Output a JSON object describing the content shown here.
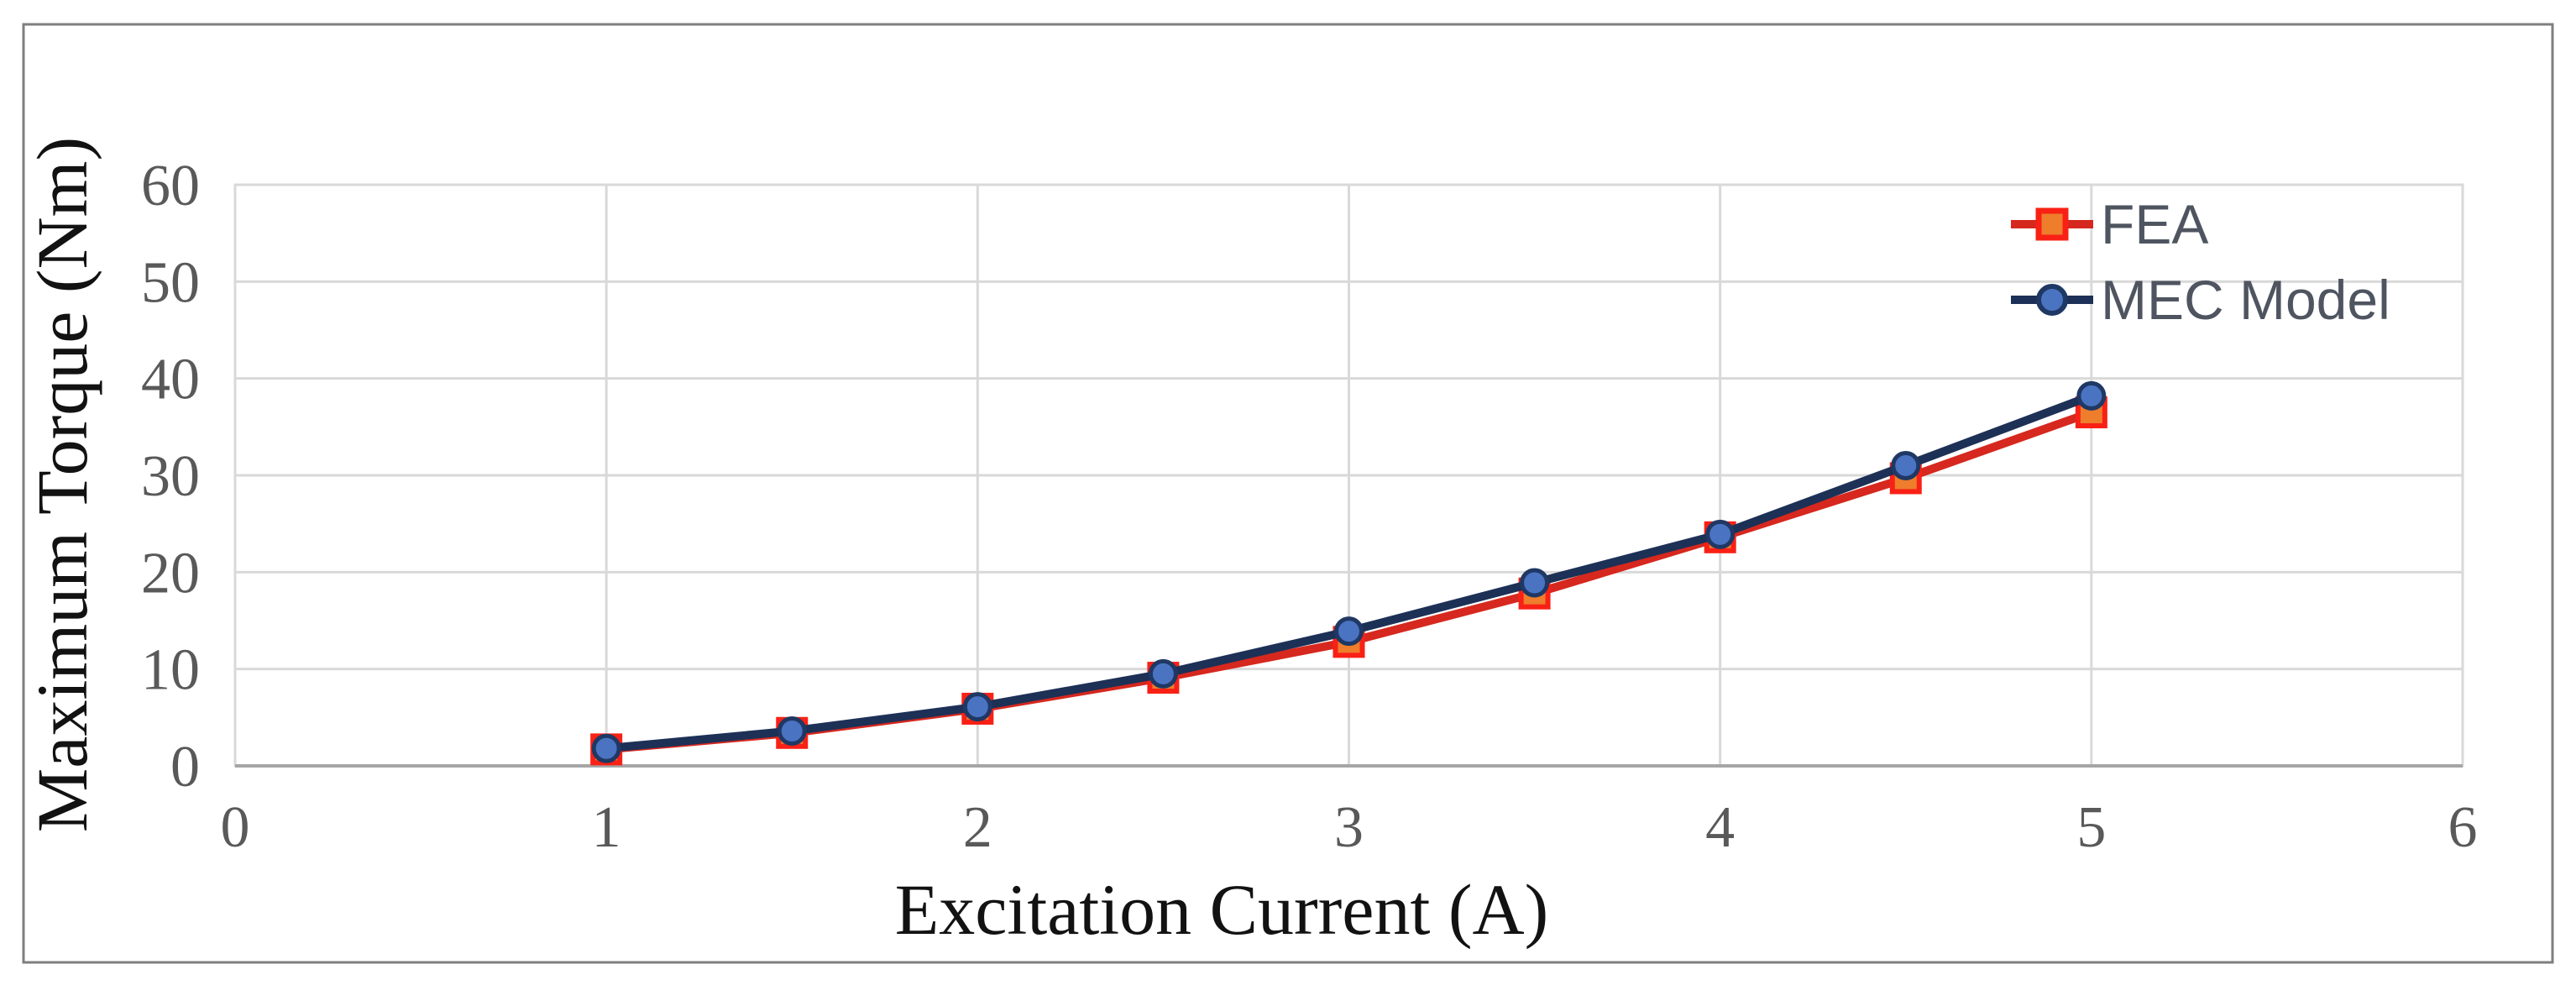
{
  "chart_data": {
    "type": "line",
    "title": "",
    "xlabel": "Excitation Current (A)",
    "ylabel": "Maximum Torque (Nm)",
    "x": [
      1,
      1.5,
      2,
      2.5,
      3,
      3.5,
      4,
      4.5,
      5
    ],
    "series": [
      {
        "name": "FEA",
        "values": [
          1.7,
          3.4,
          5.9,
          9.1,
          12.8,
          17.8,
          23.6,
          29.7,
          36.5
        ],
        "line_color": "#d6281e",
        "marker": "square",
        "marker_fill": "#ee7d2c",
        "marker_stroke": "#f92015"
      },
      {
        "name": "MEC Model",
        "values": [
          1.8,
          3.6,
          6.1,
          9.5,
          13.9,
          18.9,
          23.9,
          31.0,
          38.2
        ],
        "line_color": "#1d3056",
        "marker": "circle",
        "marker_fill": "#4a73c2",
        "marker_stroke": "#1f3864"
      }
    ],
    "xlim": [
      0,
      6
    ],
    "ylim": [
      0,
      60
    ],
    "x_ticks": [
      0,
      1,
      2,
      3,
      4,
      5,
      6
    ],
    "y_ticks": [
      0,
      10,
      20,
      30,
      40,
      50,
      60
    ],
    "grid": true,
    "legend_position": "top-right"
  },
  "styles": {
    "background": "#ffffff",
    "figure_border": "#7f7f7f",
    "gridline": "#d9d9d9",
    "axis_line": "#a6a6a6",
    "tick_label_color": "#595959",
    "axis_title_color": "#121212",
    "legend_text_color": "#4f5560"
  }
}
